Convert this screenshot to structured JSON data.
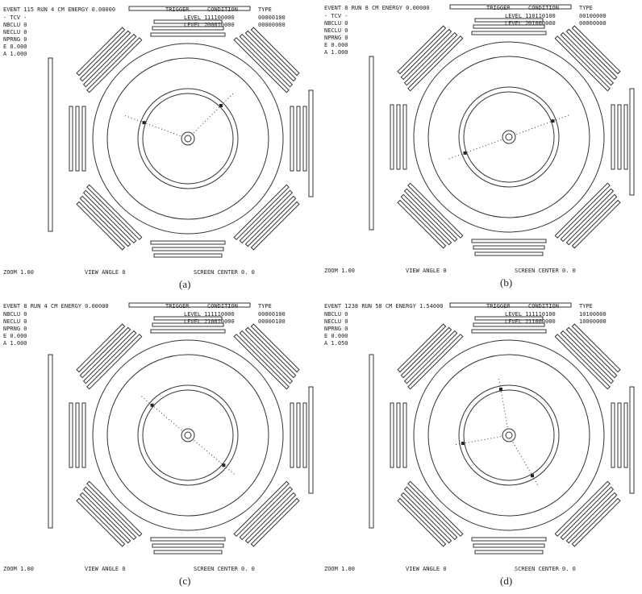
{
  "panels": [
    {
      "caption": "(a)",
      "header": "EVENT   115 RUN    4 CM ENERGY 0.00000",
      "columns": [
        "TRIGGER",
        "CONDITION",
        "TYPE"
      ],
      "levels": [
        [
          "LEVEL 1",
          "11100000",
          "00000100"
        ],
        [
          "LEVEL 2",
          "00010000",
          "00000000"
        ]
      ],
      "info": [
        "- TCV -",
        "NBCLU  0",
        "NECLU  0",
        "NPRNG  0",
        "E  0.000",
        "A  1.000"
      ],
      "footer": [
        "ZOOM 1.00",
        "VIEW ANGLE  0",
        "SCREEN CENTER    0.   0"
      ]
    },
    {
      "caption": "(b)",
      "header": "EVENT     8 RUN    8 CM ENERGY 0.00000",
      "columns": [
        "TRIGGER",
        "CONDITION",
        "TYPE"
      ],
      "levels": [
        [
          "LEVEL 1",
          "10110100",
          "00100000"
        ],
        [
          "LEVEL 2",
          "01000000",
          "00000000"
        ]
      ],
      "info": [
        "- TCV -",
        "NBCLU  0",
        "NECLU  0",
        "NPRNG  0",
        "E  0.000",
        "A  1.000"
      ],
      "footer": [
        "ZOOM 1.00",
        "VIEW ANGLE  0",
        "SCREEN CENTER    0.   0"
      ]
    },
    {
      "caption": "(c)",
      "header": "EVENT     8 RUN    4 CM ENERGY 0.00000",
      "columns": [
        "TRIGGER",
        "CONDITION",
        "TYPE"
      ],
      "levels": [
        [
          "LEVEL 1",
          "11110000",
          "00000100"
        ],
        [
          "LEVEL 2",
          "10010000",
          "00000100"
        ]
      ],
      "info": [
        "NBCLU  0",
        "NECLU  0",
        "NPRNG  0",
        "E  0.000",
        "A  1.000"
      ],
      "footer": [
        "ZOOM 1.00",
        "VIEW ANGLE  0",
        "SCREEN CENTER    0.   0"
      ]
    },
    {
      "caption": "(d)",
      "header": "EVENT  1238 RUN   58 CM ENERGY 1.54000",
      "columns": [
        "TRIGGER",
        "CONDITION",
        "TYPE"
      ],
      "levels": [
        [
          "LEVEL 1",
          "11110100",
          "10100000"
        ],
        [
          "LEVEL 2",
          "11000000",
          "10000000"
        ]
      ],
      "info": [
        "NBCLU  0",
        "NECLU  0",
        "NPRNG  0",
        "E  0.000",
        "A  1.050"
      ],
      "footer": [
        "ZOOM 1.00",
        "VIEW ANGLE  0",
        "SCREEN CENTER    0.   0"
      ]
    }
  ]
}
